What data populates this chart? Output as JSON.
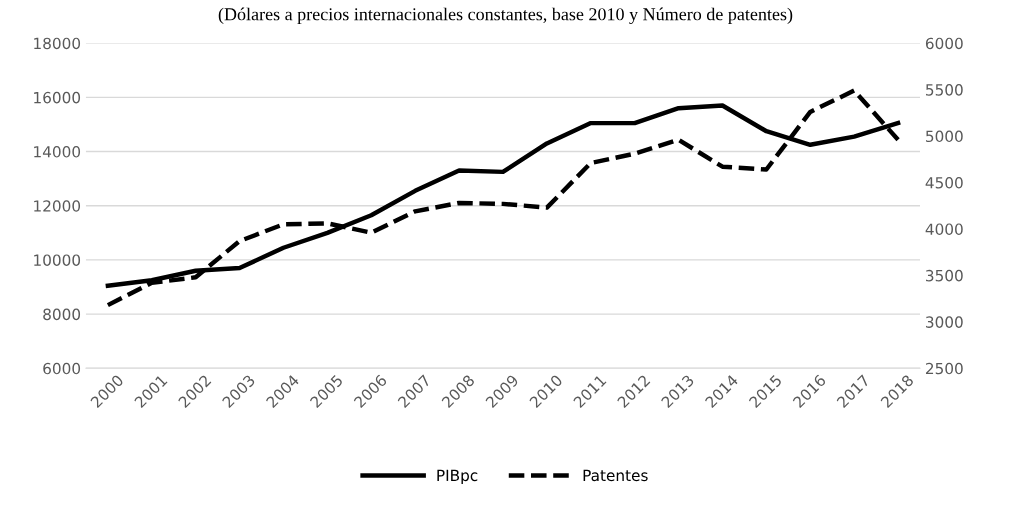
{
  "chart_data": {
    "type": "line",
    "title": "(Dólares a precios internacionales constantes, base 2010 y Número de patentes)",
    "categories": [
      "2000",
      "2001",
      "2002",
      "2003",
      "2004",
      "2005",
      "2006",
      "2007",
      "2008",
      "2009",
      "2010",
      "2011",
      "2012",
      "2013",
      "2014",
      "2015",
      "2016",
      "2017",
      "2018"
    ],
    "series": [
      {
        "name": "PIBpc",
        "color": "#000000",
        "line_style": "solid",
        "values": [
          9050,
          9250,
          9600,
          9700,
          10450,
          11000,
          11650,
          12550,
          13300,
          13250,
          14300,
          15050,
          15050,
          15600,
          15700,
          14750,
          14250,
          14550,
          15050
        ]
      },
      {
        "name": "Patentes",
        "color": "#000000",
        "line_style": "dashed",
        "axis": "y2",
        "values": [
          3180,
          3420,
          3480,
          3870,
          4050,
          4060,
          3960,
          4190,
          4280,
          4270,
          4230,
          4710,
          4810,
          4960,
          4670,
          4640,
          5260,
          5490,
          4960
        ]
      }
    ],
    "ylim": [
      6000,
      18000
    ],
    "yticks": [
      6000,
      8000,
      10000,
      12000,
      14000,
      16000,
      18000
    ],
    "y2lim": [
      2500,
      6000
    ],
    "y2ticks": [
      2500,
      3000,
      3500,
      4000,
      4500,
      5000,
      5500,
      6000
    ],
    "grid": "y",
    "legend": "bottom"
  }
}
